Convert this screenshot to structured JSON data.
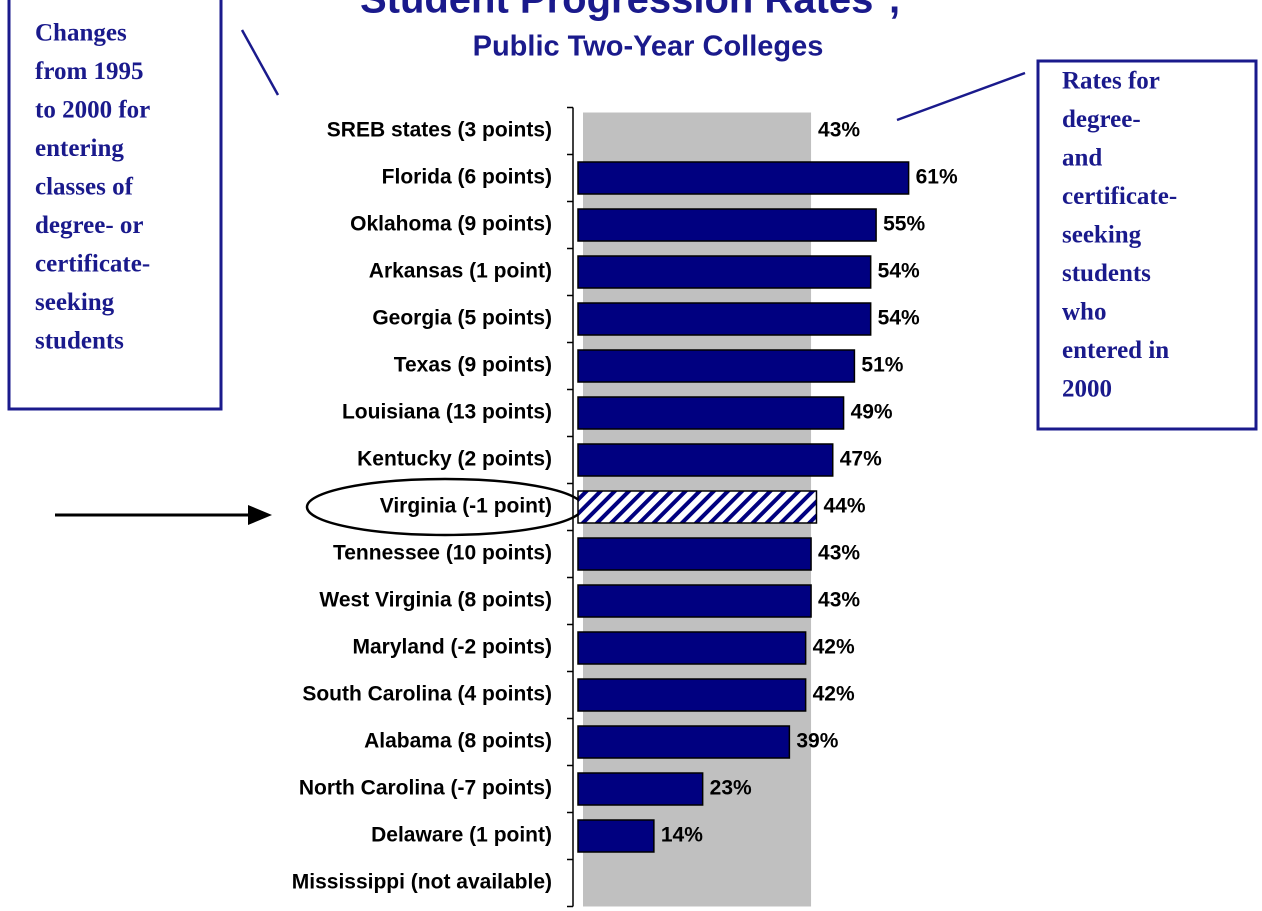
{
  "chart_data": {
    "type": "bar",
    "orientation": "horizontal",
    "title": "Student Progression Rates*,",
    "subtitle": "Public Two-Year Colleges",
    "categories": [
      "SREB states (3 points)",
      "Florida (6 points)",
      "Oklahoma (9 points)",
      "Arkansas (1 point)",
      "Georgia (5 points)",
      "Texas (9 points)",
      "Louisiana (13 points)",
      "Kentucky (2 points)",
      "Virginia (-1 point)",
      "Tennessee (10 points)",
      "West Virginia (8 points)",
      "Maryland (-2 points)",
      "South Carolina (4 points)",
      "Alabama (8 points)",
      "North Carolina (-7 points)",
      "Delaware (1 point)",
      "Mississippi (not available)"
    ],
    "values": [
      43,
      61,
      55,
      54,
      54,
      51,
      49,
      47,
      44,
      43,
      43,
      42,
      42,
      39,
      23,
      14,
      null
    ],
    "value_labels": [
      "43%",
      "61%",
      "55%",
      "54%",
      "54%",
      "51%",
      "49%",
      "47%",
      "44%",
      "43%",
      "43%",
      "42%",
      "42%",
      "39%",
      "23%",
      "14%",
      null
    ],
    "color": "#000080",
    "reference_index": 0,
    "reference_color": "#c0c0c0",
    "hatched_index": 8,
    "annotations": [
      {
        "lines": [
          "Changes",
          "from 1995",
          "to 2000 for",
          "entering",
          "classes of",
          "degree- or",
          "certificate-",
          "seeking",
          "students"
        ]
      },
      {
        "lines": [
          "Rates for",
          "degree-",
          "and",
          "certificate-",
          "seeking",
          "students",
          "who",
          "entered in",
          "2000"
        ]
      }
    ]
  }
}
